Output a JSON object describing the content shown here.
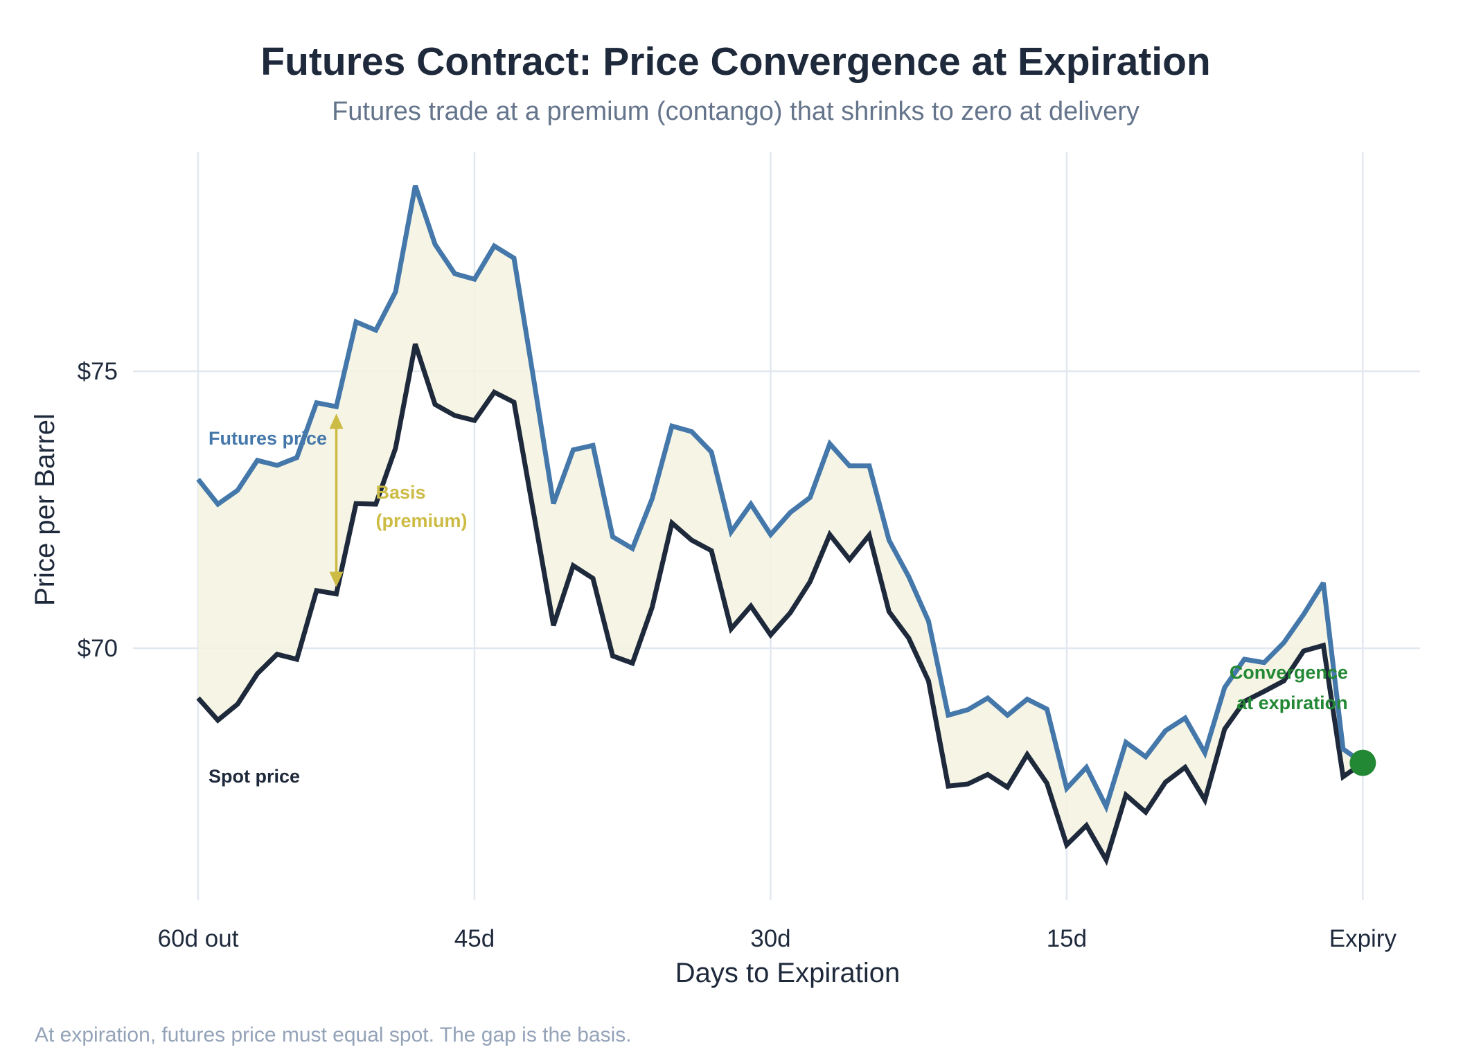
{
  "chart_data": {
    "type": "line",
    "title": "Futures Contract: Price Convergence at Expiration",
    "subtitle": "Futures trade at a premium (contango) that shrinks to zero at delivery",
    "xlabel": "Days to Expiration",
    "ylabel": "Price per Barrel",
    "footnote": "At expiration, futures price must equal spot. The gap is the basis.",
    "x": [
      0,
      1,
      2,
      3,
      4,
      5,
      6,
      7,
      8,
      9,
      10,
      11,
      12,
      13,
      14,
      15,
      16,
      17,
      18,
      19,
      20,
      21,
      22,
      23,
      24,
      25,
      26,
      27,
      28,
      29,
      30,
      31,
      32,
      33,
      34,
      35,
      36,
      37,
      38,
      39,
      40,
      41,
      42,
      43,
      44,
      45,
      46,
      47,
      48,
      49,
      50,
      51,
      52,
      53,
      54,
      55,
      56,
      57,
      58,
      59
    ],
    "xlim": [
      -3.3,
      61.9
    ],
    "ylim": [
      65.45,
      78.95
    ],
    "grid": true,
    "xticks": [
      {
        "value": 0,
        "label": "60d out"
      },
      {
        "value": 14,
        "label": "45d"
      },
      {
        "value": 29,
        "label": "30d"
      },
      {
        "value": 44,
        "label": "15d"
      },
      {
        "value": 59,
        "label": "Expiry"
      }
    ],
    "yticks": [
      {
        "value": 70,
        "label": "$70"
      },
      {
        "value": 75,
        "label": "$75"
      }
    ],
    "series": [
      {
        "name": "Futures price",
        "color": "#4477aa",
        "values": [
          73.05,
          72.6,
          72.85,
          73.39,
          73.3,
          73.44,
          74.43,
          74.36,
          75.89,
          75.74,
          76.43,
          78.35,
          77.29,
          76.76,
          76.66,
          77.26,
          77.04,
          74.85,
          72.61,
          73.58,
          73.66,
          72.01,
          71.8,
          72.7,
          74.01,
          73.91,
          73.54,
          72.1,
          72.6,
          72.05,
          72.45,
          72.72,
          73.69,
          73.29,
          73.29,
          71.95,
          71.29,
          70.49,
          68.79,
          68.89,
          69.1,
          68.79,
          69.08,
          68.9,
          67.47,
          67.85,
          67.14,
          68.3,
          68.04,
          68.51,
          68.74,
          68.11,
          69.29,
          69.8,
          69.74,
          70.1,
          70.61,
          71.18,
          68.18,
          67.93
        ]
      },
      {
        "name": "Spot price",
        "color": "#1e293b",
        "values": [
          69.1,
          68.7,
          68.99,
          69.54,
          69.89,
          69.8,
          71.04,
          70.98,
          72.61,
          72.6,
          73.61,
          75.49,
          74.4,
          74.2,
          74.11,
          74.62,
          74.44,
          72.43,
          70.41,
          71.49,
          71.26,
          69.86,
          69.73,
          70.74,
          72.26,
          71.95,
          71.76,
          70.35,
          70.76,
          70.24,
          70.64,
          71.2,
          72.05,
          71.6,
          72.04,
          70.66,
          70.18,
          69.41,
          67.51,
          67.55,
          67.72,
          67.49,
          68.08,
          67.56,
          66.45,
          66.8,
          66.18,
          67.35,
          67.04,
          67.58,
          67.85,
          67.26,
          68.54,
          69.04,
          69.22,
          69.41,
          69.95,
          70.05,
          67.68,
          67.93
        ]
      }
    ],
    "fill_between": {
      "upper": "Futures price",
      "lower": "Spot price",
      "color": "#f5f3e1"
    },
    "annotations": {
      "futures_label": {
        "text": "Futures price",
        "x": 2,
        "y": 73.8
      },
      "spot_label": {
        "text": "Spot price",
        "x": 2,
        "y": 67.7
      },
      "basis": {
        "line1": "Basis",
        "line2": "(premium)",
        "x": 7,
        "from": 74.36,
        "to": 70.98,
        "color": "#ccbb44"
      },
      "convergence": {
        "line1": "Convergence",
        "line2": "at expiration",
        "x": 59,
        "y": 67.93,
        "color": "#228833"
      }
    }
  }
}
